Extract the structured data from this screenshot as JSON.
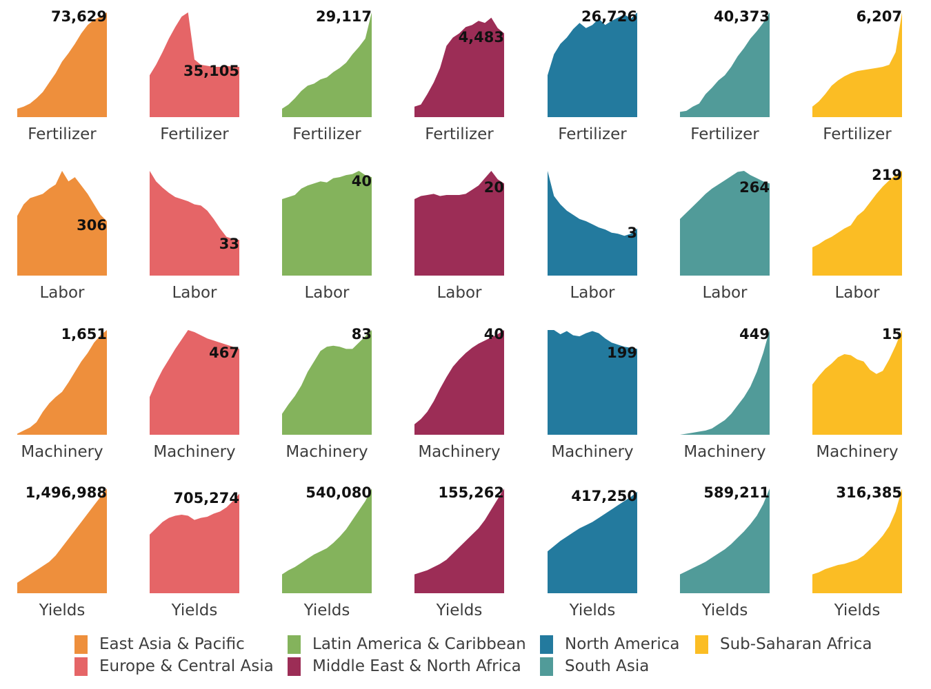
{
  "chart_data": {
    "type": "area",
    "title": "",
    "layout": "small multiples; columns = regions, rows = indicators",
    "grid": false,
    "legend_position": "bottom",
    "regions": [
      {
        "name": "East Asia & Pacific",
        "color": "#ee8f3c"
      },
      {
        "name": "Europe & Central Asia",
        "color": "#e56567"
      },
      {
        "name": "Latin America & Caribbean",
        "color": "#84b35c"
      },
      {
        "name": "Middle East & North Africa",
        "color": "#9c2d56"
      },
      {
        "name": "North America",
        "color": "#237a9e"
      },
      {
        "name": "South Asia",
        "color": "#519b99"
      },
      {
        "name": "Sub-Saharan Africa",
        "color": "#fbbd24"
      }
    ],
    "indicators": [
      "Fertilizer",
      "Labor",
      "Machinery",
      "Yields"
    ],
    "panels": [
      {
        "indicator": "Fertilizer",
        "region": "East Asia & Pacific",
        "end_label": "73,629",
        "values": [
          0.08,
          0.1,
          0.13,
          0.18,
          0.24,
          0.33,
          0.42,
          0.53,
          0.61,
          0.7,
          0.8,
          0.88,
          0.93,
          0.96,
          1.0
        ]
      },
      {
        "indicator": "Fertilizer",
        "region": "Europe & Central Asia",
        "end_label": "35,105",
        "values": [
          0.4,
          0.5,
          0.62,
          0.75,
          0.86,
          0.96,
          1.0,
          0.55,
          0.5,
          0.49,
          0.48,
          0.48,
          0.49,
          0.48,
          0.48
        ]
      },
      {
        "indicator": "Fertilizer",
        "region": "Latin America & Caribbean",
        "end_label": "29,117",
        "values": [
          0.08,
          0.12,
          0.18,
          0.25,
          0.3,
          0.32,
          0.36,
          0.38,
          0.43,
          0.47,
          0.52,
          0.6,
          0.67,
          0.75,
          1.0
        ]
      },
      {
        "indicator": "Fertilizer",
        "region": "Middle East & North Africa",
        "end_label": "4,483",
        "values": [
          0.1,
          0.12,
          0.22,
          0.33,
          0.47,
          0.68,
          0.76,
          0.8,
          0.86,
          0.88,
          0.92,
          0.9,
          0.95,
          0.85,
          0.8
        ]
      },
      {
        "indicator": "Fertilizer",
        "region": "North America",
        "end_label": "26,726",
        "values": [
          0.4,
          0.6,
          0.7,
          0.76,
          0.84,
          0.9,
          0.85,
          0.88,
          0.94,
          0.88,
          0.92,
          0.95,
          0.98,
          0.94,
          1.0
        ]
      },
      {
        "indicator": "Fertilizer",
        "region": "South Asia",
        "end_label": "40,373",
        "values": [
          0.05,
          0.06,
          0.1,
          0.13,
          0.22,
          0.28,
          0.35,
          0.4,
          0.48,
          0.58,
          0.66,
          0.75,
          0.82,
          0.9,
          1.0
        ]
      },
      {
        "indicator": "Fertilizer",
        "region": "Sub-Saharan Africa",
        "end_label": "6,207",
        "values": [
          0.1,
          0.15,
          0.22,
          0.3,
          0.35,
          0.39,
          0.42,
          0.44,
          0.45,
          0.46,
          0.47,
          0.48,
          0.5,
          0.62,
          1.0
        ]
      },
      {
        "indicator": "Labor",
        "region": "East Asia & Pacific",
        "end_label": "306",
        "values": [
          0.57,
          0.68,
          0.74,
          0.76,
          0.78,
          0.83,
          0.87,
          1.0,
          0.9,
          0.94,
          0.86,
          0.78,
          0.68,
          0.58,
          0.52
        ]
      },
      {
        "indicator": "Labor",
        "region": "Europe & Central Asia",
        "end_label": "33",
        "values": [
          1.0,
          0.9,
          0.84,
          0.79,
          0.75,
          0.73,
          0.71,
          0.68,
          0.67,
          0.62,
          0.54,
          0.45,
          0.37,
          0.35,
          0.34
        ]
      },
      {
        "indicator": "Labor",
        "region": "Latin America & Caribbean",
        "end_label": "40",
        "values": [
          0.73,
          0.75,
          0.77,
          0.83,
          0.86,
          0.88,
          0.9,
          0.89,
          0.93,
          0.94,
          0.96,
          0.97,
          1.0,
          0.96,
          0.94
        ]
      },
      {
        "indicator": "Labor",
        "region": "Middle East & North Africa",
        "end_label": "20",
        "values": [
          0.73,
          0.76,
          0.77,
          0.78,
          0.76,
          0.77,
          0.77,
          0.77,
          0.78,
          0.82,
          0.86,
          0.93,
          1.0,
          0.92,
          0.88
        ]
      },
      {
        "indicator": "Labor",
        "region": "North America",
        "end_label": "3",
        "values": [
          1.0,
          0.76,
          0.68,
          0.62,
          0.58,
          0.54,
          0.52,
          0.49,
          0.46,
          0.44,
          0.41,
          0.4,
          0.38,
          0.4,
          0.45
        ]
      },
      {
        "indicator": "Labor",
        "region": "South Asia",
        "end_label": "264",
        "values": [
          0.54,
          0.6,
          0.66,
          0.72,
          0.78,
          0.83,
          0.87,
          0.91,
          0.95,
          0.99,
          1.0,
          0.96,
          0.93,
          0.9,
          0.88
        ]
      },
      {
        "indicator": "Labor",
        "region": "Sub-Saharan Africa",
        "end_label": "219",
        "values": [
          0.27,
          0.3,
          0.34,
          0.37,
          0.41,
          0.45,
          0.48,
          0.57,
          0.62,
          0.7,
          0.78,
          0.85,
          0.91,
          0.96,
          1.0
        ]
      },
      {
        "indicator": "Machinery",
        "region": "East Asia & Pacific",
        "end_label": "1,651",
        "values": [
          0.01,
          0.04,
          0.07,
          0.12,
          0.22,
          0.3,
          0.36,
          0.41,
          0.5,
          0.6,
          0.7,
          0.78,
          0.88,
          0.95,
          1.0
        ]
      },
      {
        "indicator": "Machinery",
        "region": "Europe & Central Asia",
        "end_label": "467",
        "values": [
          0.36,
          0.5,
          0.62,
          0.72,
          0.82,
          0.91,
          1.0,
          0.98,
          0.95,
          0.92,
          0.9,
          0.88,
          0.86,
          0.84,
          0.82
        ]
      },
      {
        "indicator": "Machinery",
        "region": "Latin America & Caribbean",
        "end_label": "83",
        "values": [
          0.2,
          0.29,
          0.37,
          0.47,
          0.6,
          0.7,
          0.8,
          0.84,
          0.85,
          0.84,
          0.82,
          0.82,
          0.88,
          0.94,
          1.0
        ]
      },
      {
        "indicator": "Machinery",
        "region": "Middle East & North Africa",
        "end_label": "40",
        "values": [
          0.1,
          0.15,
          0.22,
          0.32,
          0.44,
          0.55,
          0.65,
          0.72,
          0.78,
          0.83,
          0.87,
          0.9,
          0.93,
          0.96,
          1.0
        ]
      },
      {
        "indicator": "Machinery",
        "region": "North America",
        "end_label": "199",
        "values": [
          1.0,
          1.0,
          0.96,
          0.99,
          0.95,
          0.94,
          0.97,
          0.99,
          0.97,
          0.92,
          0.88,
          0.86,
          0.84,
          0.83,
          0.82
        ]
      },
      {
        "indicator": "Machinery",
        "region": "South Asia",
        "end_label": "449",
        "values": [
          0.0,
          0.01,
          0.02,
          0.03,
          0.04,
          0.06,
          0.1,
          0.14,
          0.2,
          0.28,
          0.36,
          0.46,
          0.6,
          0.78,
          1.0
        ]
      },
      {
        "indicator": "Machinery",
        "region": "Sub-Saharan Africa",
        "end_label": "15",
        "values": [
          0.48,
          0.56,
          0.63,
          0.68,
          0.74,
          0.77,
          0.76,
          0.72,
          0.7,
          0.62,
          0.58,
          0.61,
          0.72,
          0.85,
          1.0
        ]
      },
      {
        "indicator": "Yields",
        "region": "East Asia & Pacific",
        "end_label": "1,496,988",
        "values": [
          0.1,
          0.14,
          0.18,
          0.22,
          0.26,
          0.3,
          0.36,
          0.44,
          0.52,
          0.6,
          0.68,
          0.76,
          0.84,
          0.92,
          1.0
        ]
      },
      {
        "indicator": "Yields",
        "region": "Europe & Central Asia",
        "end_label": "705,274",
        "values": [
          0.56,
          0.62,
          0.68,
          0.72,
          0.74,
          0.75,
          0.74,
          0.7,
          0.72,
          0.73,
          0.76,
          0.78,
          0.82,
          0.88,
          0.95
        ]
      },
      {
        "indicator": "Yields",
        "region": "Latin America & Caribbean",
        "end_label": "540,080",
        "values": [
          0.18,
          0.22,
          0.25,
          0.29,
          0.33,
          0.37,
          0.4,
          0.43,
          0.48,
          0.54,
          0.61,
          0.7,
          0.79,
          0.88,
          1.0
        ]
      },
      {
        "indicator": "Yields",
        "region": "Middle East & North Africa",
        "end_label": "155,262",
        "values": [
          0.18,
          0.2,
          0.22,
          0.25,
          0.28,
          0.32,
          0.38,
          0.44,
          0.5,
          0.56,
          0.62,
          0.7,
          0.8,
          0.9,
          1.0
        ]
      },
      {
        "indicator": "Yields",
        "region": "North America",
        "end_label": "417,250",
        "values": [
          0.4,
          0.45,
          0.5,
          0.54,
          0.58,
          0.62,
          0.65,
          0.68,
          0.72,
          0.76,
          0.8,
          0.84,
          0.88,
          0.92,
          0.97
        ]
      },
      {
        "indicator": "Yields",
        "region": "South Asia",
        "end_label": "589,211",
        "values": [
          0.18,
          0.21,
          0.24,
          0.27,
          0.3,
          0.34,
          0.38,
          0.42,
          0.47,
          0.53,
          0.59,
          0.66,
          0.74,
          0.85,
          1.0
        ]
      },
      {
        "indicator": "Yields",
        "region": "Sub-Saharan Africa",
        "end_label": "316,385",
        "values": [
          0.18,
          0.2,
          0.23,
          0.25,
          0.27,
          0.28,
          0.3,
          0.32,
          0.36,
          0.42,
          0.48,
          0.55,
          0.64,
          0.78,
          1.0
        ]
      }
    ]
  }
}
